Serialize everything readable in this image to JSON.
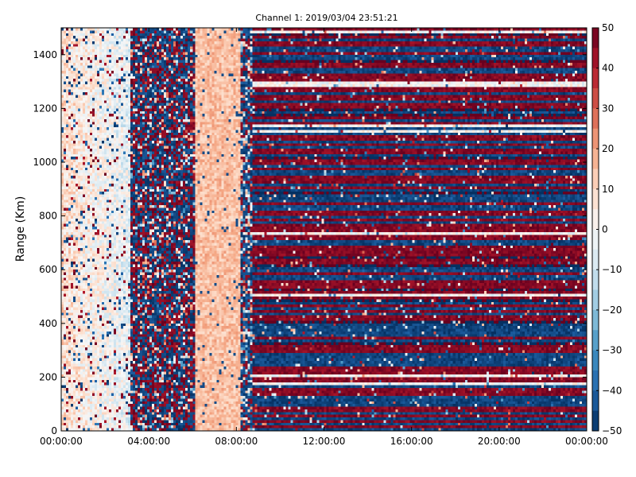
{
  "chart_data": {
    "type": "heatmap",
    "title": "Channel 1: 2019/03/04 23:51:21",
    "xlabel": "",
    "ylabel": "Range (Km)",
    "x_ticks": [
      "00:00:00",
      "04:00:00",
      "08:00:00",
      "12:00:00",
      "16:00:00",
      "20:00:00",
      "00:00:00"
    ],
    "x_range_hours": [
      0,
      24
    ],
    "ylim": [
      0,
      1500
    ],
    "y_ticks": [
      0,
      200,
      400,
      600,
      800,
      1000,
      1200,
      1400
    ],
    "colorbar": {
      "min": -50,
      "max": 50,
      "ticks": [
        50,
        40,
        30,
        20,
        10,
        0,
        -10,
        -20,
        -30,
        -40,
        -50
      ],
      "colormap": [
        "#053061",
        "#2166ac",
        "#4393c3",
        "#92c5de",
        "#d1e5f0",
        "#f7f7f7",
        "#fddbc7",
        "#f4a582",
        "#d6604d",
        "#b2182b",
        "#67001f"
      ]
    },
    "segments": [
      {
        "hours": [
          0,
          3.2
        ],
        "pattern": "light pink/white noise, values ~ -10 to 20"
      },
      {
        "hours": [
          3.2,
          6.1
        ],
        "pattern": "dark speckled noise, values ~ -50 to 50"
      },
      {
        "hours": [
          6.1,
          8.2
        ],
        "pattern": "light salmon band, values ~ 5 to 20"
      },
      {
        "hours": [
          8.2,
          8.7
        ],
        "pattern": "dark transition noise"
      },
      {
        "hours": [
          8.7,
          24
        ],
        "pattern": "horizontal range bands alternating ~ +50 and -50"
      }
    ]
  }
}
